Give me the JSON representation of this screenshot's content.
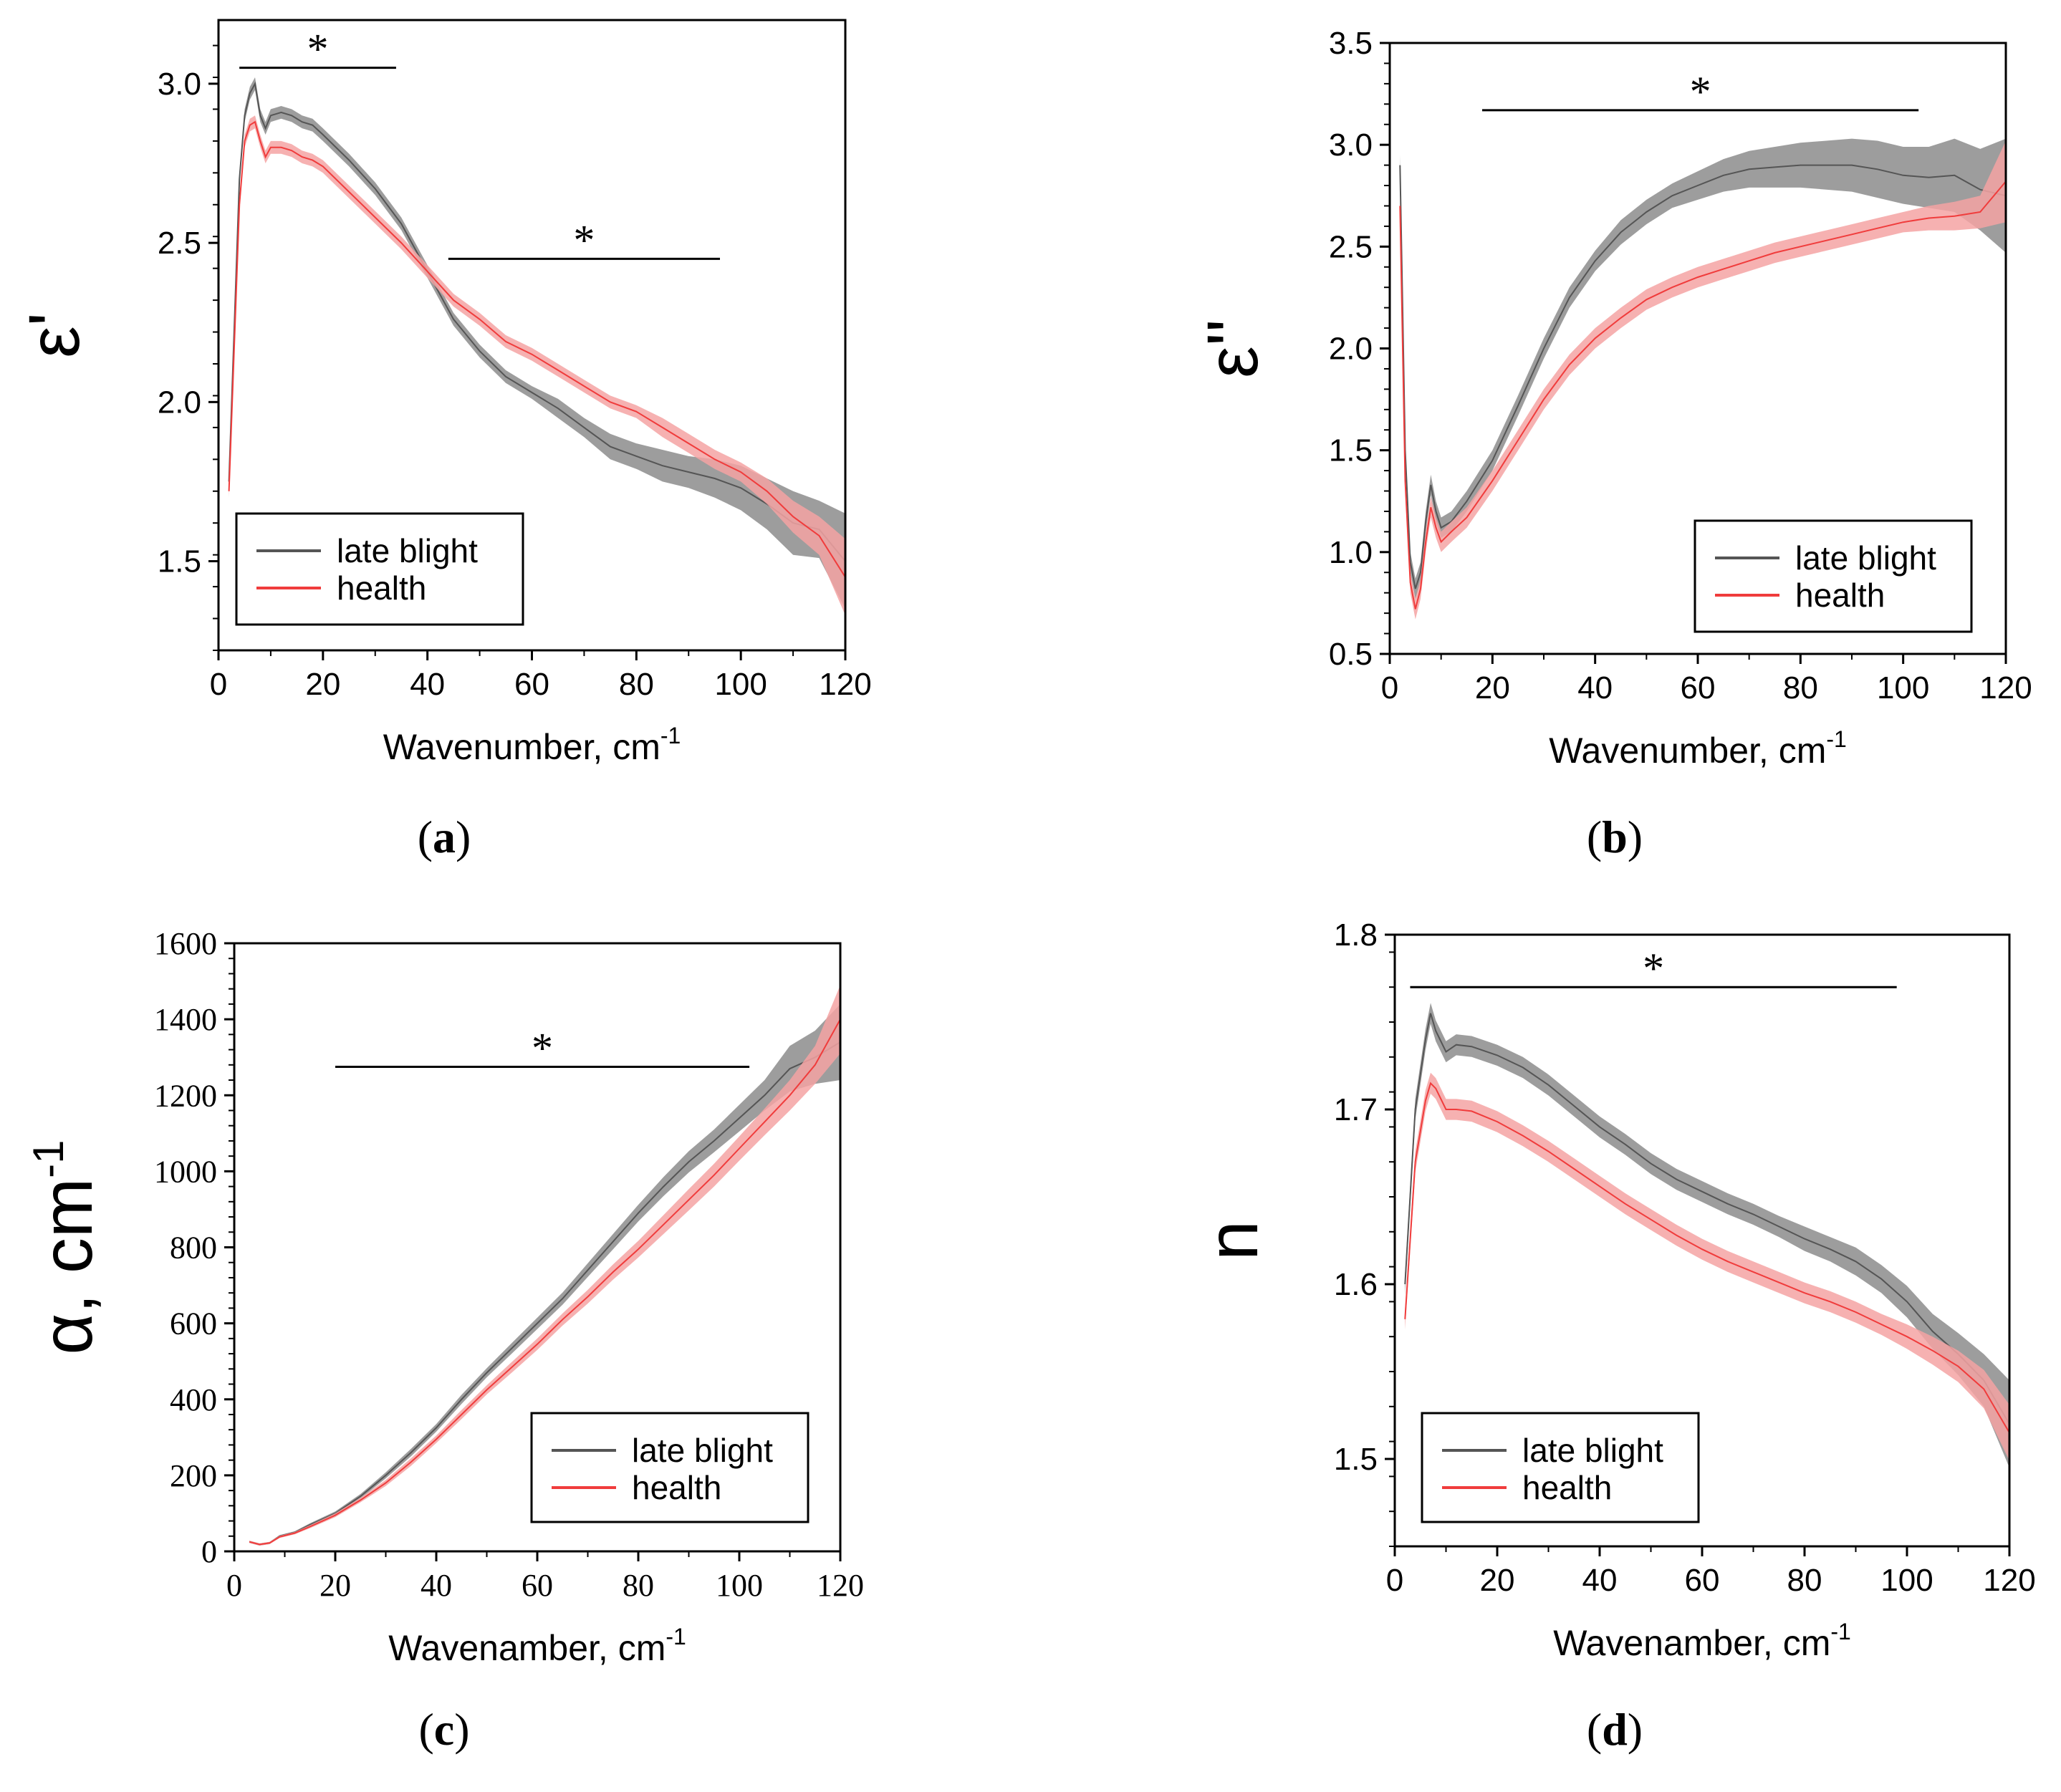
{
  "colors": {
    "late_blight_line": "#555555",
    "late_blight_band": "#8c8c8c",
    "health_line": "#f03c3c",
    "health_band": "#f5a3a3",
    "axis": "#000000"
  },
  "chart_data": [
    {
      "id": "a",
      "type": "line",
      "panel_label": "(a)",
      "panel_letter": "a",
      "ylabel": "ε'",
      "xlabel": "Wavenumber, cm",
      "xlabel_sup": "-1",
      "xlim": [
        0,
        120
      ],
      "ylim": [
        1.22,
        3.2
      ],
      "xticks": [
        "0",
        "20",
        "40",
        "60",
        "80",
        "100",
        "120"
      ],
      "xtick_values": [
        0,
        20,
        40,
        60,
        80,
        100,
        120
      ],
      "yticks": [
        "1.5",
        "2.0",
        "2.5",
        "3.0"
      ],
      "ytick_values": [
        1.5,
        2.0,
        2.5,
        3.0
      ],
      "tick_font": "sans",
      "legend": {
        "entries": [
          "late blight",
          "health"
        ],
        "position": "bottom-left"
      },
      "significance": [
        {
          "x_start": 4,
          "x_end": 34,
          "y": 3.05,
          "label": "*"
        },
        {
          "x_start": 44,
          "x_end": 96,
          "y": 2.45,
          "label": "*"
        }
      ],
      "series": [
        {
          "name": "late blight",
          "x": [
            2,
            4,
            5,
            6,
            7,
            8,
            9,
            10,
            12,
            14,
            16,
            18,
            20,
            25,
            30,
            35,
            40,
            45,
            50,
            55,
            60,
            65,
            70,
            75,
            80,
            85,
            90,
            95,
            100,
            105,
            110,
            115,
            120
          ],
          "y": [
            1.75,
            2.7,
            2.9,
            2.97,
            3.0,
            2.9,
            2.86,
            2.9,
            2.91,
            2.9,
            2.88,
            2.87,
            2.84,
            2.76,
            2.67,
            2.56,
            2.41,
            2.26,
            2.16,
            2.08,
            2.03,
            1.98,
            1.92,
            1.86,
            1.83,
            1.8,
            1.78,
            1.76,
            1.73,
            1.68,
            1.62,
            1.6,
            1.5
          ],
          "err": [
            0.02,
            0.02,
            0.02,
            0.02,
            0.02,
            0.02,
            0.02,
            0.02,
            0.02,
            0.02,
            0.02,
            0.02,
            0.02,
            0.02,
            0.02,
            0.02,
            0.02,
            0.02,
            0.02,
            0.02,
            0.02,
            0.03,
            0.03,
            0.04,
            0.04,
            0.05,
            0.05,
            0.06,
            0.07,
            0.08,
            0.1,
            0.09,
            0.15
          ]
        },
        {
          "name": "health",
          "x": [
            2,
            4,
            5,
            6,
            7,
            8,
            9,
            10,
            12,
            14,
            16,
            18,
            20,
            25,
            30,
            35,
            40,
            45,
            50,
            55,
            60,
            65,
            70,
            75,
            80,
            85,
            90,
            95,
            100,
            105,
            110,
            115,
            120
          ],
          "y": [
            1.72,
            2.62,
            2.82,
            2.87,
            2.88,
            2.82,
            2.77,
            2.8,
            2.8,
            2.79,
            2.77,
            2.76,
            2.74,
            2.66,
            2.58,
            2.5,
            2.41,
            2.32,
            2.26,
            2.19,
            2.15,
            2.1,
            2.05,
            2.0,
            1.97,
            1.92,
            1.87,
            1.82,
            1.78,
            1.72,
            1.64,
            1.58,
            1.45
          ],
          "err": [
            0.02,
            0.02,
            0.02,
            0.02,
            0.02,
            0.02,
            0.02,
            0.02,
            0.02,
            0.02,
            0.02,
            0.02,
            0.02,
            0.02,
            0.02,
            0.02,
            0.02,
            0.02,
            0.02,
            0.02,
            0.02,
            0.02,
            0.02,
            0.02,
            0.02,
            0.03,
            0.03,
            0.03,
            0.03,
            0.04,
            0.05,
            0.06,
            0.12
          ]
        }
      ]
    },
    {
      "id": "b",
      "type": "line",
      "panel_label": "(b)",
      "panel_letter": "b",
      "ylabel": "ε''",
      "xlabel": "Wavenumber, cm",
      "xlabel_sup": "-1",
      "xlim": [
        0,
        120
      ],
      "ylim": [
        0.5,
        3.5
      ],
      "xticks": [
        "0",
        "20",
        "40",
        "60",
        "80",
        "100",
        "120"
      ],
      "xtick_values": [
        0,
        20,
        40,
        60,
        80,
        100,
        120
      ],
      "yticks": [
        "0.5",
        "1.0",
        "1.5",
        "2.0",
        "2.5",
        "3.0",
        "3.5"
      ],
      "ytick_values": [
        0.5,
        1.0,
        1.5,
        2.0,
        2.5,
        3.0,
        3.5
      ],
      "tick_font": "sans",
      "legend": {
        "entries": [
          "late blight",
          "health"
        ],
        "position": "bottom-right"
      },
      "significance": [
        {
          "x_start": 18,
          "x_end": 103,
          "y": 3.17,
          "label": "*"
        }
      ],
      "series": [
        {
          "name": "late blight",
          "x": [
            2,
            3,
            4,
            5,
            6,
            7,
            8,
            9,
            10,
            12,
            15,
            20,
            25,
            30,
            35,
            40,
            45,
            50,
            55,
            60,
            65,
            70,
            75,
            80,
            85,
            90,
            95,
            100,
            105,
            110,
            115,
            120
          ],
          "y": [
            2.9,
            1.5,
            0.95,
            0.82,
            0.9,
            1.15,
            1.33,
            1.2,
            1.12,
            1.15,
            1.25,
            1.45,
            1.72,
            2.0,
            2.25,
            2.43,
            2.57,
            2.67,
            2.75,
            2.8,
            2.85,
            2.88,
            2.89,
            2.9,
            2.9,
            2.9,
            2.88,
            2.85,
            2.84,
            2.85,
            2.78,
            2.75
          ],
          "err": [
            0.05,
            0.05,
            0.05,
            0.05,
            0.05,
            0.05,
            0.05,
            0.05,
            0.05,
            0.05,
            0.05,
            0.05,
            0.05,
            0.05,
            0.05,
            0.05,
            0.06,
            0.06,
            0.06,
            0.07,
            0.08,
            0.09,
            0.1,
            0.11,
            0.12,
            0.13,
            0.14,
            0.14,
            0.15,
            0.18,
            0.2,
            0.28
          ]
        },
        {
          "name": "health",
          "x": [
            2,
            3,
            4,
            5,
            6,
            7,
            8,
            9,
            10,
            12,
            15,
            20,
            25,
            30,
            35,
            40,
            45,
            50,
            55,
            60,
            65,
            70,
            75,
            80,
            85,
            90,
            95,
            100,
            105,
            110,
            115,
            120
          ],
          "y": [
            2.7,
            1.35,
            0.85,
            0.72,
            0.82,
            1.05,
            1.22,
            1.12,
            1.05,
            1.1,
            1.17,
            1.35,
            1.55,
            1.75,
            1.92,
            2.05,
            2.15,
            2.24,
            2.3,
            2.35,
            2.39,
            2.43,
            2.47,
            2.5,
            2.53,
            2.56,
            2.59,
            2.62,
            2.64,
            2.65,
            2.67,
            2.82
          ],
          "err": [
            0.05,
            0.05,
            0.05,
            0.05,
            0.05,
            0.05,
            0.05,
            0.05,
            0.05,
            0.05,
            0.05,
            0.05,
            0.05,
            0.05,
            0.05,
            0.05,
            0.05,
            0.05,
            0.05,
            0.05,
            0.05,
            0.05,
            0.05,
            0.05,
            0.05,
            0.05,
            0.05,
            0.05,
            0.06,
            0.07,
            0.08,
            0.2
          ]
        }
      ]
    },
    {
      "id": "c",
      "type": "line",
      "panel_label": "(c)",
      "panel_letter": "c",
      "ylabel": "α, cm",
      "ylabel_sup": "-1",
      "xlabel": "Wavenamber, cm",
      "xlabel_sup": "-1",
      "xlim": [
        0,
        120
      ],
      "ylim": [
        0,
        1600
      ],
      "xticks": [
        "0",
        "20",
        "40",
        "60",
        "80",
        "100",
        "120"
      ],
      "xtick_values": [
        0,
        20,
        40,
        60,
        80,
        100,
        120
      ],
      "yticks": [
        "0",
        "200",
        "400",
        "600",
        "800",
        "1000",
        "1200",
        "1400",
        "1600"
      ],
      "ytick_values": [
        0,
        200,
        400,
        600,
        800,
        1000,
        1200,
        1400,
        1600
      ],
      "tick_font": "serif",
      "legend": {
        "entries": [
          "late blight",
          "health"
        ],
        "position": "bottom-right"
      },
      "significance": [
        {
          "x_start": 20,
          "x_end": 102,
          "y": 1275,
          "label": "*"
        }
      ],
      "series": [
        {
          "name": "late blight",
          "x": [
            3,
            5,
            7,
            9,
            12,
            15,
            20,
            25,
            30,
            35,
            40,
            45,
            50,
            55,
            60,
            65,
            70,
            75,
            80,
            85,
            90,
            95,
            100,
            105,
            110,
            115,
            120
          ],
          "y": [
            25,
            18,
            22,
            40,
            50,
            70,
            100,
            145,
            200,
            260,
            325,
            400,
            470,
            535,
            600,
            665,
            740,
            815,
            890,
            960,
            1025,
            1080,
            1140,
            1200,
            1270,
            1300,
            1340
          ],
          "err": [
            3,
            3,
            3,
            3,
            3,
            4,
            5,
            6,
            8,
            10,
            10,
            12,
            12,
            14,
            15,
            16,
            18,
            20,
            22,
            25,
            28,
            30,
            35,
            40,
            60,
            70,
            100
          ]
        },
        {
          "name": "health",
          "x": [
            3,
            5,
            7,
            9,
            12,
            15,
            20,
            25,
            30,
            35,
            40,
            45,
            50,
            55,
            60,
            65,
            70,
            75,
            80,
            85,
            90,
            95,
            100,
            105,
            110,
            115,
            120
          ],
          "y": [
            25,
            18,
            22,
            38,
            48,
            65,
            95,
            135,
            180,
            235,
            295,
            360,
            425,
            485,
            545,
            610,
            670,
            735,
            795,
            860,
            925,
            990,
            1060,
            1130,
            1200,
            1280,
            1400
          ],
          "err": [
            3,
            3,
            3,
            3,
            3,
            4,
            5,
            6,
            8,
            10,
            10,
            12,
            12,
            14,
            15,
            16,
            18,
            20,
            22,
            25,
            28,
            30,
            32,
            35,
            40,
            50,
            90
          ]
        }
      ]
    },
    {
      "id": "d",
      "type": "line",
      "panel_label": "(d)",
      "panel_letter": "d",
      "ylabel": "n",
      "xlabel": "Wavenamber, cm",
      "xlabel_sup": "-1",
      "xlim": [
        0,
        120
      ],
      "ylim": [
        1.45,
        1.8
      ],
      "xticks": [
        "0",
        "20",
        "40",
        "60",
        "80",
        "100",
        "120"
      ],
      "xtick_values": [
        0,
        20,
        40,
        60,
        80,
        100,
        120
      ],
      "yticks": [
        "1.5",
        "1.6",
        "1.7",
        "1.8"
      ],
      "ytick_values": [
        1.5,
        1.6,
        1.7,
        1.8
      ],
      "tick_font": "sans",
      "legend": {
        "entries": [
          "late blight",
          "health"
        ],
        "position": "bottom-left"
      },
      "significance": [
        {
          "x_start": 3,
          "x_end": 98,
          "y": 1.77,
          "label": "*"
        }
      ],
      "series": [
        {
          "name": "late blight",
          "x": [
            2,
            4,
            6,
            7,
            8,
            10,
            12,
            15,
            20,
            25,
            30,
            35,
            40,
            45,
            50,
            55,
            60,
            65,
            70,
            75,
            80,
            85,
            90,
            95,
            100,
            105,
            110,
            115,
            120
          ],
          "y": [
            1.6,
            1.7,
            1.74,
            1.755,
            1.745,
            1.733,
            1.737,
            1.736,
            1.731,
            1.724,
            1.714,
            1.702,
            1.69,
            1.68,
            1.669,
            1.66,
            1.653,
            1.646,
            1.64,
            1.633,
            1.626,
            1.62,
            1.613,
            1.603,
            1.59,
            1.573,
            1.56,
            1.545,
            1.52
          ],
          "err": [
            0.006,
            0.006,
            0.006,
            0.006,
            0.006,
            0.006,
            0.006,
            0.006,
            0.006,
            0.006,
            0.006,
            0.006,
            0.006,
            0.006,
            0.006,
            0.006,
            0.006,
            0.006,
            0.006,
            0.006,
            0.007,
            0.007,
            0.008,
            0.008,
            0.009,
            0.01,
            0.012,
            0.015,
            0.025
          ]
        },
        {
          "name": "health",
          "x": [
            2,
            4,
            6,
            7,
            8,
            10,
            12,
            15,
            20,
            25,
            30,
            35,
            40,
            45,
            50,
            55,
            60,
            65,
            70,
            75,
            80,
            85,
            90,
            95,
            100,
            105,
            110,
            115,
            120
          ],
          "y": [
            1.58,
            1.67,
            1.705,
            1.715,
            1.712,
            1.7,
            1.7,
            1.699,
            1.693,
            1.685,
            1.676,
            1.666,
            1.656,
            1.646,
            1.637,
            1.628,
            1.62,
            1.613,
            1.607,
            1.601,
            1.595,
            1.59,
            1.584,
            1.577,
            1.57,
            1.562,
            1.553,
            1.54,
            1.515
          ],
          "err": [
            0.006,
            0.006,
            0.006,
            0.006,
            0.006,
            0.006,
            0.006,
            0.006,
            0.006,
            0.006,
            0.006,
            0.006,
            0.006,
            0.006,
            0.006,
            0.006,
            0.006,
            0.006,
            0.006,
            0.006,
            0.006,
            0.006,
            0.006,
            0.006,
            0.007,
            0.008,
            0.009,
            0.011,
            0.016
          ]
        }
      ]
    }
  ]
}
